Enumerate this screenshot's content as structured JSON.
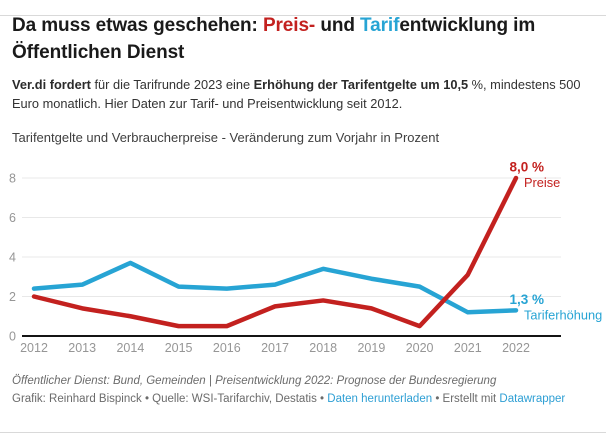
{
  "page": {
    "background": "#ffffff",
    "border_color": "#d9d9d9"
  },
  "colors": {
    "red": "#c3211f",
    "blue": "#27a4d4",
    "title_text": "#1a1a1a",
    "body_text": "#333333",
    "tick_label": "#969696",
    "grid": "#e8e8e8",
    "axis_line": "#141414",
    "footer_text": "#6b6b6b",
    "link": "#2e9fd4"
  },
  "title": {
    "parts": [
      {
        "text": "Da muss etwas geschehen: "
      },
      {
        "text": "Preis-",
        "color": "red"
      },
      {
        "text": " und "
      },
      {
        "text": "Tarif",
        "color": "blue"
      },
      {
        "text": "entwicklung im Öffentlichen Dienst"
      }
    ]
  },
  "subtitle": {
    "parts": [
      {
        "text": "Ver.di fordert",
        "bold": true
      },
      {
        "text": " für die Tarifrunde 2023 eine "
      },
      {
        "text": "Erhöhung der Tarifentgelte um 10,5",
        "bold": true
      },
      {
        "text": " %, mindestens 500 Euro monatlich. Hier Daten zur Tarif- und Preisentwicklung seit 2012."
      }
    ]
  },
  "chart_note": "Tarifentgelte und Verbraucherpreise - Veränderung zum Vorjahr in Prozent",
  "chart_data": {
    "type": "line",
    "title": "Tarifentgelte und Verbraucherpreise - Veränderung zum Vorjahr in Prozent",
    "xlabel": "",
    "ylabel": "Veränderung zum Vorjahr in Prozent",
    "x": [
      2012,
      2013,
      2014,
      2015,
      2016,
      2017,
      2018,
      2019,
      2020,
      2021,
      2022
    ],
    "ylim": [
      0,
      8
    ],
    "yticks": [
      0,
      2,
      4,
      6,
      8
    ],
    "grid": true,
    "legend_position": "direct-line-labels-right",
    "series": [
      {
        "id": "tarif",
        "name": "Tariferhöhung",
        "color_key": "blue",
        "values": [
          2.4,
          2.6,
          3.7,
          2.5,
          2.4,
          2.6,
          3.4,
          2.9,
          2.5,
          1.2,
          1.3
        ],
        "end_label": {
          "value_text": "1,3 %",
          "name_text": "Tariferhöhung"
        }
      },
      {
        "id": "preise",
        "name": "Preise",
        "color_key": "red",
        "values": [
          2.0,
          1.4,
          1.0,
          0.5,
          0.5,
          1.5,
          1.8,
          1.4,
          0.5,
          3.1,
          8.0
        ],
        "end_label": {
          "value_text": "8,0 %",
          "name_text": "Preise"
        }
      }
    ]
  },
  "footer": {
    "note": "Öffentlicher Dienst: Bund, Gemeinden | Preisentwicklung 2022: Prognose der Bundesregierung",
    "byline_parts": [
      {
        "text": "Grafik: Reinhard Bispinck"
      },
      {
        "text": " • "
      },
      {
        "text": "Quelle: WSI-Tarifarchiv, Destatis"
      },
      {
        "text": " • "
      },
      {
        "text": "Daten herunterladen",
        "link": true
      },
      {
        "text": " • "
      },
      {
        "text": "Erstellt mit "
      },
      {
        "text": "Datawrapper",
        "link": true
      }
    ]
  }
}
